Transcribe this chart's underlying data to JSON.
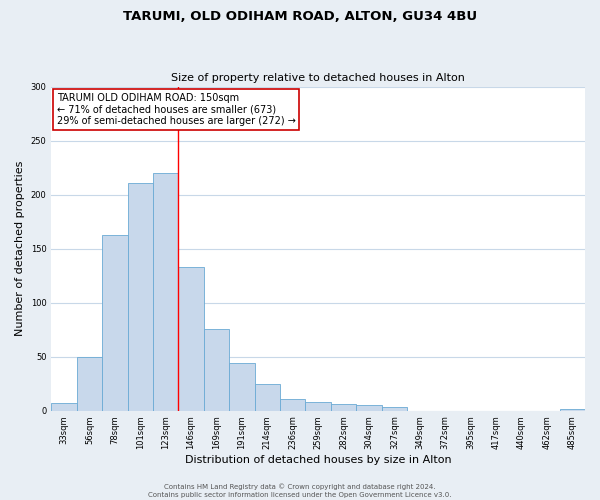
{
  "title": "TARUMI, OLD ODIHAM ROAD, ALTON, GU34 4BU",
  "subtitle": "Size of property relative to detached houses in Alton",
  "xlabel": "Distribution of detached houses by size in Alton",
  "ylabel": "Number of detached properties",
  "categories": [
    "33sqm",
    "56sqm",
    "78sqm",
    "101sqm",
    "123sqm",
    "146sqm",
    "169sqm",
    "191sqm",
    "214sqm",
    "236sqm",
    "259sqm",
    "282sqm",
    "304sqm",
    "327sqm",
    "349sqm",
    "372sqm",
    "395sqm",
    "417sqm",
    "440sqm",
    "462sqm",
    "485sqm"
  ],
  "values": [
    7,
    50,
    163,
    211,
    220,
    133,
    76,
    44,
    25,
    11,
    8,
    6,
    5,
    3,
    0,
    0,
    0,
    0,
    0,
    0,
    2
  ],
  "bar_color": "#c8d8eb",
  "bar_edge_color": "#6aaad4",
  "ylim": [
    0,
    300
  ],
  "yticks": [
    0,
    50,
    100,
    150,
    200,
    250,
    300
  ],
  "marker_bin_index": 5,
  "annotation_title": "TARUMI OLD ODIHAM ROAD: 150sqm",
  "annotation_line1": "← 71% of detached houses are smaller (673)",
  "annotation_line2": "29% of semi-detached houses are larger (272) →",
  "annotation_box_color": "#ffffff",
  "annotation_box_edge": "#cc0000",
  "footer1": "Contains HM Land Registry data © Crown copyright and database right 2024.",
  "footer2": "Contains public sector information licensed under the Open Government Licence v3.0.",
  "bg_color": "#e8eef4",
  "plot_bg_color": "#ffffff",
  "grid_color": "#c8d8e8",
  "title_fontsize": 9.5,
  "subtitle_fontsize": 8,
  "ylabel_fontsize": 8,
  "xlabel_fontsize": 8,
  "tick_fontsize": 6,
  "footer_fontsize": 5,
  "ann_fontsize": 7
}
